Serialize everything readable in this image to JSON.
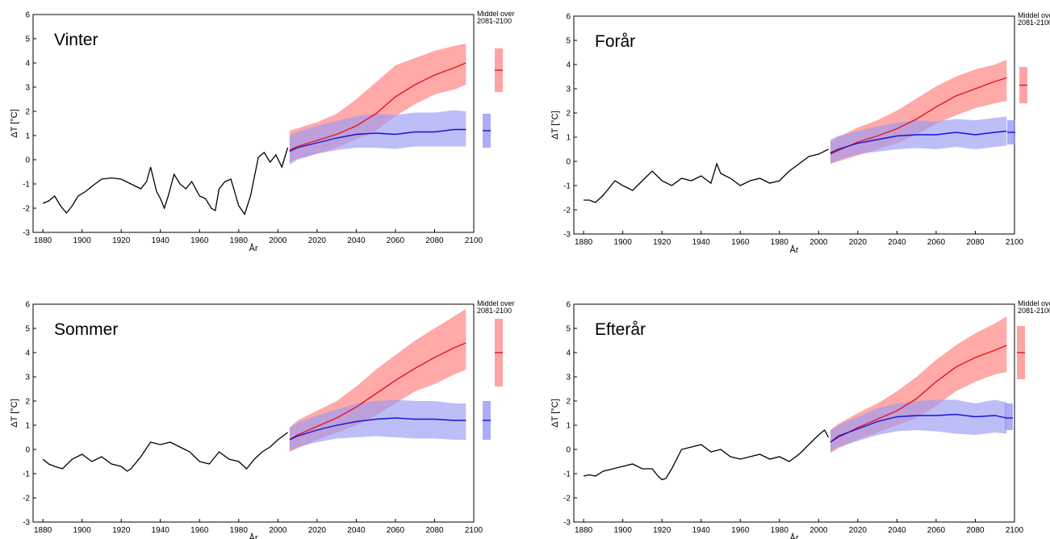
{
  "figure": {
    "side_note_line1": "Middel over",
    "side_note_line2": "2081-2100",
    "colors": {
      "observed": "#000000",
      "high": "#e8141c",
      "high_band": "#ff9a9a",
      "low": "#1414d2",
      "low_band": "#9999f5"
    }
  },
  "chart_data": [
    {
      "type": "line",
      "title": "Vinter",
      "xlabel": "År",
      "ylabel": "ΔT [°C]",
      "xlim": [
        1875,
        2100
      ],
      "ylim": [
        -3,
        6
      ],
      "xticks": [
        1880,
        1900,
        1920,
        1940,
        1960,
        1980,
        2000,
        2020,
        2040,
        2060,
        2080,
        2100
      ],
      "yticks": [
        -3,
        -2,
        -1,
        0,
        1,
        2,
        3,
        4,
        5,
        6
      ],
      "observed": {
        "x": [
          1880,
          1883,
          1886,
          1889,
          1892,
          1895,
          1898,
          1902,
          1905,
          1910,
          1915,
          1920,
          1925,
          1930,
          1933,
          1935,
          1938,
          1940,
          1942,
          1944,
          1947,
          1950,
          1953,
          1956,
          1960,
          1963,
          1966,
          1968,
          1970,
          1973,
          1976,
          1980,
          1983,
          1986,
          1990,
          1993,
          1996,
          1999,
          2002,
          2005
        ],
        "y": [
          -1.8,
          -1.7,
          -1.5,
          -1.9,
          -2.2,
          -1.9,
          -1.5,
          -1.3,
          -1.1,
          -0.8,
          -0.75,
          -0.8,
          -1.0,
          -1.2,
          -0.9,
          -0.3,
          -1.3,
          -1.6,
          -2.0,
          -1.5,
          -0.6,
          -1.0,
          -1.2,
          -0.9,
          -1.5,
          -1.6,
          -2.0,
          -2.1,
          -1.2,
          -0.9,
          -0.8,
          -1.9,
          -2.25,
          -1.5,
          0.1,
          0.3,
          -0.1,
          0.2,
          -0.3,
          0.5
        ]
      },
      "series": [
        {
          "x": [
            2006,
            2010,
            2020,
            2030,
            2040,
            2050,
            2060,
            2070,
            2080,
            2090,
            2096
          ],
          "mean": [
            0.4,
            0.55,
            0.8,
            1.05,
            1.4,
            1.9,
            2.6,
            3.1,
            3.5,
            3.8,
            4.0
          ],
          "lower": [
            -0.1,
            0.05,
            0.25,
            0.5,
            0.85,
            1.2,
            1.8,
            2.3,
            2.7,
            2.9,
            3.1
          ],
          "upper": [
            1.2,
            1.3,
            1.55,
            1.9,
            2.5,
            3.2,
            3.9,
            4.2,
            4.5,
            4.7,
            4.8
          ]
        },
        {
          "x": [
            2006,
            2010,
            2020,
            2030,
            2040,
            2050,
            2060,
            2070,
            2080,
            2090,
            2096
          ],
          "mean": [
            0.35,
            0.5,
            0.7,
            0.9,
            1.05,
            1.1,
            1.05,
            1.15,
            1.15,
            1.25,
            1.25
          ],
          "lower": [
            -0.2,
            0.0,
            0.25,
            0.4,
            0.5,
            0.5,
            0.45,
            0.55,
            0.55,
            0.55,
            0.55
          ],
          "upper": [
            1.0,
            1.15,
            1.4,
            1.6,
            1.8,
            1.9,
            1.85,
            1.95,
            1.95,
            2.05,
            2.0
          ]
        }
      ],
      "end_bars": [
        {
          "low": 2.8,
          "high": 4.6,
          "mean": 3.7
        },
        {
          "low": 0.5,
          "high": 1.9,
          "mean": 1.2
        }
      ]
    },
    {
      "type": "line",
      "title": "Forår",
      "xlabel": "År",
      "ylabel": "ΔT [°C]",
      "xlim": [
        1875,
        2100
      ],
      "ylim": [
        -3,
        6
      ],
      "xticks": [
        1880,
        1900,
        1920,
        1940,
        1960,
        1980,
        2000,
        2020,
        2040,
        2060,
        2080,
        2100
      ],
      "yticks": [
        -3,
        -2,
        -1,
        0,
        1,
        2,
        3,
        4,
        5,
        6
      ],
      "observed": {
        "x": [
          1880,
          1883,
          1886,
          1890,
          1893,
          1896,
          1900,
          1905,
          1910,
          1915,
          1920,
          1925,
          1930,
          1935,
          1940,
          1945,
          1948,
          1950,
          1955,
          1960,
          1965,
          1970,
          1975,
          1980,
          1985,
          1990,
          1995,
          2000,
          2005
        ],
        "y": [
          -1.6,
          -1.6,
          -1.7,
          -1.4,
          -1.1,
          -0.8,
          -1.0,
          -1.2,
          -0.8,
          -0.4,
          -0.8,
          -1.0,
          -0.7,
          -0.8,
          -0.6,
          -0.9,
          -0.1,
          -0.5,
          -0.7,
          -1.0,
          -0.8,
          -0.7,
          -0.9,
          -0.8,
          -0.4,
          -0.1,
          0.2,
          0.3,
          0.5
        ]
      },
      "series": [
        {
          "x": [
            2006,
            2010,
            2020,
            2030,
            2040,
            2050,
            2060,
            2070,
            2080,
            2090,
            2096
          ],
          "mean": [
            0.3,
            0.45,
            0.8,
            1.05,
            1.35,
            1.75,
            2.25,
            2.7,
            3.0,
            3.3,
            3.45
          ],
          "lower": [
            -0.1,
            0.0,
            0.25,
            0.5,
            0.75,
            1.1,
            1.55,
            1.9,
            2.2,
            2.4,
            2.5
          ],
          "upper": [
            0.8,
            1.0,
            1.4,
            1.7,
            2.1,
            2.6,
            3.1,
            3.5,
            3.8,
            4.0,
            4.2
          ]
        },
        {
          "x": [
            2006,
            2010,
            2020,
            2030,
            2040,
            2050,
            2060,
            2070,
            2080,
            2090,
            2096
          ],
          "mean": [
            0.35,
            0.5,
            0.75,
            0.9,
            1.05,
            1.1,
            1.1,
            1.2,
            1.1,
            1.2,
            1.25
          ],
          "lower": [
            -0.1,
            0.05,
            0.3,
            0.4,
            0.5,
            0.55,
            0.5,
            0.6,
            0.5,
            0.6,
            0.65
          ],
          "upper": [
            0.9,
            1.05,
            1.25,
            1.45,
            1.6,
            1.7,
            1.65,
            1.75,
            1.7,
            1.8,
            1.85
          ]
        }
      ],
      "end_bars": [
        {
          "low": 2.4,
          "high": 3.9,
          "mean": 3.15
        },
        {
          "low": 0.7,
          "high": 1.7,
          "mean": 1.2
        }
      ]
    },
    {
      "type": "line",
      "title": "Sommer",
      "xlabel": "År",
      "ylabel": "ΔT [°C]",
      "xlim": [
        1875,
        2100
      ],
      "ylim": [
        -3,
        6
      ],
      "xticks": [
        1880,
        1900,
        1920,
        1940,
        1960,
        1980,
        2000,
        2020,
        2040,
        2060,
        2080,
        2100
      ],
      "yticks": [
        -3,
        -2,
        -1,
        0,
        1,
        2,
        3,
        4,
        5,
        6
      ],
      "observed": {
        "x": [
          1880,
          1883,
          1886,
          1890,
          1895,
          1900,
          1905,
          1910,
          1915,
          1920,
          1923,
          1925,
          1930,
          1935,
          1940,
          1945,
          1950,
          1955,
          1960,
          1965,
          1970,
          1975,
          1980,
          1984,
          1988,
          1992,
          1996,
          2000,
          2005
        ],
        "y": [
          -0.4,
          -0.6,
          -0.7,
          -0.8,
          -0.4,
          -0.2,
          -0.5,
          -0.3,
          -0.6,
          -0.7,
          -0.9,
          -0.8,
          -0.3,
          0.3,
          0.2,
          0.3,
          0.1,
          -0.1,
          -0.5,
          -0.6,
          -0.1,
          -0.4,
          -0.5,
          -0.8,
          -0.4,
          -0.1,
          0.1,
          0.4,
          0.7
        ]
      },
      "series": [
        {
          "x": [
            2006,
            2010,
            2020,
            2030,
            2040,
            2050,
            2060,
            2070,
            2080,
            2090,
            2096
          ],
          "mean": [
            0.4,
            0.6,
            0.95,
            1.3,
            1.75,
            2.3,
            2.85,
            3.35,
            3.8,
            4.2,
            4.4
          ],
          "lower": [
            -0.1,
            0.05,
            0.4,
            0.7,
            1.0,
            1.4,
            1.9,
            2.4,
            2.7,
            3.1,
            3.3
          ],
          "upper": [
            0.9,
            1.2,
            1.6,
            2.0,
            2.6,
            3.3,
            3.9,
            4.5,
            5.0,
            5.5,
            5.8
          ]
        },
        {
          "x": [
            2006,
            2010,
            2020,
            2030,
            2040,
            2050,
            2060,
            2070,
            2080,
            2090,
            2096
          ],
          "mean": [
            0.4,
            0.55,
            0.8,
            1.0,
            1.15,
            1.25,
            1.3,
            1.25,
            1.25,
            1.2,
            1.2
          ],
          "lower": [
            -0.05,
            0.1,
            0.3,
            0.45,
            0.5,
            0.55,
            0.5,
            0.45,
            0.45,
            0.4,
            0.4
          ],
          "upper": [
            0.9,
            1.1,
            1.4,
            1.65,
            1.9,
            2.0,
            2.05,
            2.0,
            2.0,
            1.9,
            1.9
          ]
        }
      ],
      "end_bars": [
        {
          "low": 2.6,
          "high": 5.4,
          "mean": 4.0
        },
        {
          "low": 0.4,
          "high": 2.0,
          "mean": 1.2
        }
      ]
    },
    {
      "type": "line",
      "title": "Efterår",
      "xlabel": "År",
      "ylabel": "ΔT [°C]",
      "xlim": [
        1875,
        2100
      ],
      "ylim": [
        -3,
        6
      ],
      "xticks": [
        1880,
        1900,
        1920,
        1940,
        1960,
        1980,
        2000,
        2020,
        2040,
        2060,
        2080,
        2100
      ],
      "yticks": [
        -3,
        -2,
        -1,
        0,
        1,
        2,
        3,
        4,
        5,
        6
      ],
      "observed": {
        "x": [
          1880,
          1883,
          1886,
          1890,
          1895,
          1900,
          1905,
          1910,
          1915,
          1918,
          1920,
          1922,
          1925,
          1930,
          1935,
          1940,
          1945,
          1950,
          1955,
          1960,
          1965,
          1970,
          1975,
          1980,
          1985,
          1990,
          1995,
          2000,
          2003,
          2005
        ],
        "y": [
          -1.1,
          -1.05,
          -1.1,
          -0.9,
          -0.8,
          -0.7,
          -0.6,
          -0.8,
          -0.8,
          -1.1,
          -1.25,
          -1.2,
          -0.8,
          0.0,
          0.1,
          0.2,
          -0.1,
          0.0,
          -0.3,
          -0.4,
          -0.3,
          -0.2,
          -0.4,
          -0.3,
          -0.5,
          -0.2,
          0.2,
          0.6,
          0.8,
          0.5
        ]
      },
      "series": [
        {
          "x": [
            2006,
            2010,
            2020,
            2030,
            2040,
            2050,
            2060,
            2070,
            2080,
            2090,
            2096
          ],
          "mean": [
            0.3,
            0.5,
            0.9,
            1.25,
            1.6,
            2.1,
            2.8,
            3.4,
            3.8,
            4.1,
            4.3
          ],
          "lower": [
            -0.15,
            0.05,
            0.4,
            0.7,
            1.0,
            1.3,
            1.8,
            2.4,
            2.8,
            3.1,
            3.2
          ],
          "upper": [
            0.8,
            1.05,
            1.5,
            1.9,
            2.4,
            3.0,
            3.7,
            4.3,
            4.8,
            5.2,
            5.5
          ]
        },
        {
          "x": [
            2006,
            2010,
            2020,
            2030,
            2040,
            2050,
            2060,
            2070,
            2080,
            2090,
            2096
          ],
          "mean": [
            0.3,
            0.55,
            0.85,
            1.15,
            1.35,
            1.4,
            1.4,
            1.45,
            1.35,
            1.4,
            1.3
          ],
          "lower": [
            -0.1,
            0.1,
            0.35,
            0.6,
            0.75,
            0.8,
            0.75,
            0.65,
            0.6,
            0.7,
            0.65
          ],
          "upper": [
            0.8,
            1.0,
            1.35,
            1.7,
            1.9,
            2.0,
            2.05,
            2.05,
            1.9,
            2.05,
            1.95
          ]
        }
      ],
      "end_bars": [
        {
          "low": 2.9,
          "high": 5.1,
          "mean": 4.0
        },
        {
          "low": 0.8,
          "high": 1.9,
          "mean": 1.3
        }
      ]
    }
  ]
}
